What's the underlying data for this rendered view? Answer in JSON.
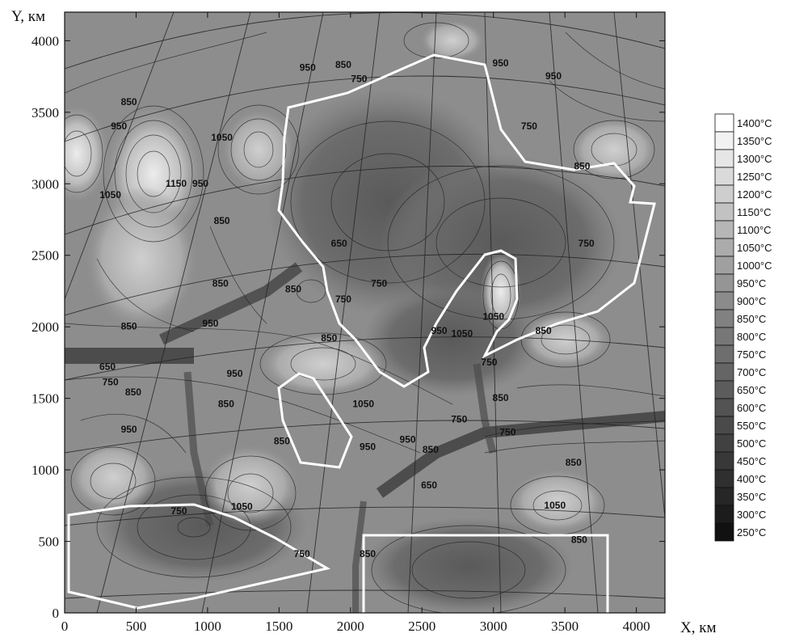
{
  "axes": {
    "x_title": "X, км",
    "y_title": "Y, км",
    "x_ticks": [
      "0",
      "500",
      "1000",
      "1500",
      "2000",
      "2500",
      "3000",
      "3500",
      "4000"
    ],
    "y_ticks": [
      "0",
      "500",
      "1000",
      "1500",
      "2000",
      "2500",
      "3000",
      "3500",
      "4000"
    ],
    "x_range": [
      0,
      4200
    ],
    "y_range": [
      0,
      4200
    ]
  },
  "legend": {
    "placement": "right",
    "entries": [
      {
        "label": "1400°C",
        "color": "#ffffff"
      },
      {
        "label": "1350°C",
        "color": "#f2f2f2"
      },
      {
        "label": "1300°C",
        "color": "#e6e6e6"
      },
      {
        "label": "1250°C",
        "color": "#dadada"
      },
      {
        "label": "1200°C",
        "color": "#cecece"
      },
      {
        "label": "1150°C",
        "color": "#c2c2c2"
      },
      {
        "label": "1100°C",
        "color": "#b6b6b6"
      },
      {
        "label": "1050°C",
        "color": "#ababab"
      },
      {
        "label": "1000°C",
        "color": "#a0a0a0"
      },
      {
        "label": "950°C",
        "color": "#959595"
      },
      {
        "label": "900°C",
        "color": "#8b8b8b"
      },
      {
        "label": "850°C",
        "color": "#818181"
      },
      {
        "label": "800°C",
        "color": "#777777"
      },
      {
        "label": "750°C",
        "color": "#6e6e6e"
      },
      {
        "label": "700°C",
        "color": "#656565"
      },
      {
        "label": "650°C",
        "color": "#5c5c5c"
      },
      {
        "label": "600°C",
        "color": "#535353"
      },
      {
        "label": "550°C",
        "color": "#4a4a4a"
      },
      {
        "label": "500°C",
        "color": "#414141"
      },
      {
        "label": "450°C",
        "color": "#383838"
      },
      {
        "label": "400°C",
        "color": "#2f2f2f"
      },
      {
        "label": "350°C",
        "color": "#262626"
      },
      {
        "label": "300°C",
        "color": "#1c1c1c"
      },
      {
        "label": "250°C",
        "color": "#111111"
      }
    ]
  },
  "contour_labels": [
    {
      "text": "850",
      "x": 450,
      "y": 3550
    },
    {
      "text": "950",
      "x": 380,
      "y": 3380
    },
    {
      "text": "1050",
      "x": 1100,
      "y": 3300
    },
    {
      "text": "1150",
      "x": 780,
      "y": 2980
    },
    {
      "text": "950",
      "x": 950,
      "y": 2980
    },
    {
      "text": "1050",
      "x": 320,
      "y": 2900
    },
    {
      "text": "850",
      "x": 1100,
      "y": 2720
    },
    {
      "text": "950",
      "x": 1700,
      "y": 3790
    },
    {
      "text": "850",
      "x": 1950,
      "y": 3810
    },
    {
      "text": "750",
      "x": 2060,
      "y": 3710
    },
    {
      "text": "950",
      "x": 3050,
      "y": 3820
    },
    {
      "text": "950",
      "x": 3420,
      "y": 3730
    },
    {
      "text": "750",
      "x": 3250,
      "y": 3380
    },
    {
      "text": "850",
      "x": 3620,
      "y": 3100
    },
    {
      "text": "650",
      "x": 1920,
      "y": 2560
    },
    {
      "text": "750",
      "x": 2200,
      "y": 2280
    },
    {
      "text": "750",
      "x": 1950,
      "y": 2170
    },
    {
      "text": "750",
      "x": 3650,
      "y": 2560
    },
    {
      "text": "850",
      "x": 1090,
      "y": 2280
    },
    {
      "text": "850",
      "x": 1600,
      "y": 2240
    },
    {
      "text": "950",
      "x": 1020,
      "y": 2000
    },
    {
      "text": "850",
      "x": 450,
      "y": 1980
    },
    {
      "text": "850",
      "x": 1850,
      "y": 1900
    },
    {
      "text": "1050",
      "x": 3000,
      "y": 2050
    },
    {
      "text": "950",
      "x": 2620,
      "y": 1950
    },
    {
      "text": "1050",
      "x": 2780,
      "y": 1930
    },
    {
      "text": "850",
      "x": 3350,
      "y": 1950
    },
    {
      "text": "750",
      "x": 2970,
      "y": 1730
    },
    {
      "text": "650",
      "x": 300,
      "y": 1700
    },
    {
      "text": "750",
      "x": 320,
      "y": 1590
    },
    {
      "text": "850",
      "x": 480,
      "y": 1520
    },
    {
      "text": "950",
      "x": 1190,
      "y": 1650
    },
    {
      "text": "850",
      "x": 1130,
      "y": 1440
    },
    {
      "text": "1050",
      "x": 2090,
      "y": 1440
    },
    {
      "text": "950",
      "x": 450,
      "y": 1260
    },
    {
      "text": "850",
      "x": 1520,
      "y": 1180
    },
    {
      "text": "950",
      "x": 2120,
      "y": 1140
    },
    {
      "text": "950",
      "x": 2400,
      "y": 1190
    },
    {
      "text": "850",
      "x": 2560,
      "y": 1120
    },
    {
      "text": "850",
      "x": 3050,
      "y": 1480
    },
    {
      "text": "750",
      "x": 2760,
      "y": 1330
    },
    {
      "text": "850",
      "x": 3560,
      "y": 1030
    },
    {
      "text": "650",
      "x": 2550,
      "y": 870
    },
    {
      "text": "750",
      "x": 800,
      "y": 690
    },
    {
      "text": "1050",
      "x": 1240,
      "y": 720
    },
    {
      "text": "850",
      "x": 2120,
      "y": 390
    },
    {
      "text": "750",
      "x": 1660,
      "y": 390
    },
    {
      "text": "1050",
      "x": 3430,
      "y": 730
    },
    {
      "text": "850",
      "x": 3600,
      "y": 490
    },
    {
      "text": "750",
      "x": 3100,
      "y": 1240
    }
  ]
}
